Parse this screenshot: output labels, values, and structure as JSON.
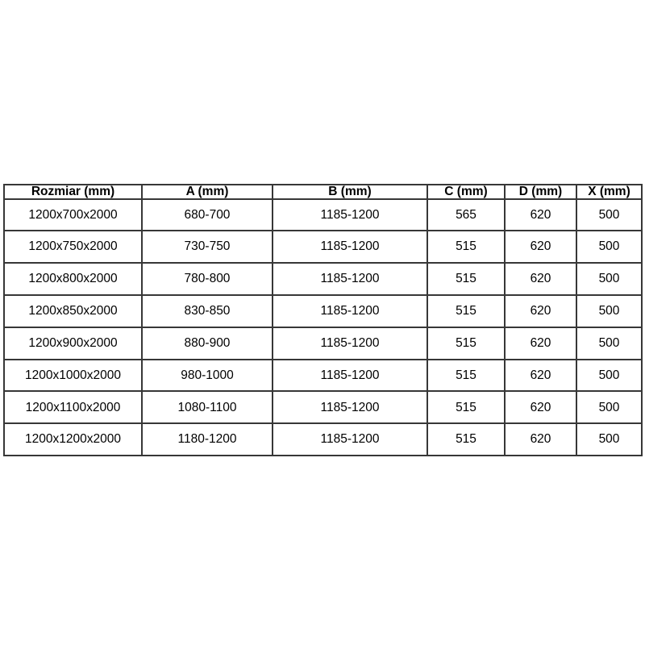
{
  "table": {
    "columns": [
      "Rozmiar (mm)",
      "A (mm)",
      "B (mm)",
      "C (mm)",
      "D (mm)",
      "X (mm)"
    ],
    "rows": [
      [
        "1200x700x2000",
        "680-700",
        "1185-1200",
        "565",
        "620",
        "500"
      ],
      [
        "1200x750x2000",
        "730-750",
        "1185-1200",
        "515",
        "620",
        "500"
      ],
      [
        "1200x800x2000",
        "780-800",
        "1185-1200",
        "515",
        "620",
        "500"
      ],
      [
        "1200x850x2000",
        "830-850",
        "1185-1200",
        "515",
        "620",
        "500"
      ],
      [
        "1200x900x2000",
        "880-900",
        "1185-1200",
        "515",
        "620",
        "500"
      ],
      [
        "1200x1000x2000",
        "980-1000",
        "1185-1200",
        "515",
        "620",
        "500"
      ],
      [
        "1200x1100x2000",
        "1080-1100",
        "1185-1200",
        "515",
        "620",
        "500"
      ],
      [
        "1200x1200x2000",
        "1180-1200",
        "1185-1200",
        "515",
        "620",
        "500"
      ]
    ],
    "colors": {
      "border": "#373737",
      "text": "#000000",
      "background": "#ffffff"
    }
  }
}
